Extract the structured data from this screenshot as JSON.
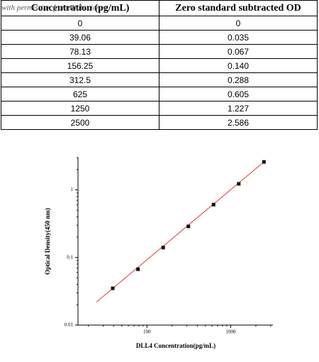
{
  "watermark": "with permission from Elabscience",
  "table": {
    "header": [
      "Concentration (pg/mL)",
      "Zero standard subtracted OD"
    ],
    "rows": [
      [
        "0",
        "0"
      ],
      [
        "39.06",
        "0.035"
      ],
      [
        "78.13",
        "0.067"
      ],
      [
        "156.25",
        "0.140"
      ],
      [
        "312.5",
        "0.288"
      ],
      [
        "625",
        "0.605"
      ],
      [
        "1250",
        "1.227"
      ],
      [
        "2500",
        "2.586"
      ]
    ]
  },
  "chart_data": {
    "type": "scatter",
    "x_label": "DLL4 Concentration(pg/mL)",
    "y_label": "Optical Density(450 nm)",
    "log_x": true,
    "log_y": true,
    "x": [
      39.06,
      78.13,
      156.25,
      312.5,
      625,
      1250,
      2500
    ],
    "values": [
      0.035,
      0.067,
      0.14,
      0.288,
      0.605,
      1.227,
      2.586
    ],
    "color": "#111111",
    "fit_line": {
      "color": "#e03a3a",
      "x": [
        25,
        2600
      ],
      "values": [
        0.022,
        2.7
      ]
    },
    "xlim": [
      15,
      3200
    ],
    "ylim": [
      0.01,
      3
    ],
    "xticks": [
      100,
      1000
    ],
    "yticks": [
      0.01,
      0.1,
      1
    ]
  }
}
